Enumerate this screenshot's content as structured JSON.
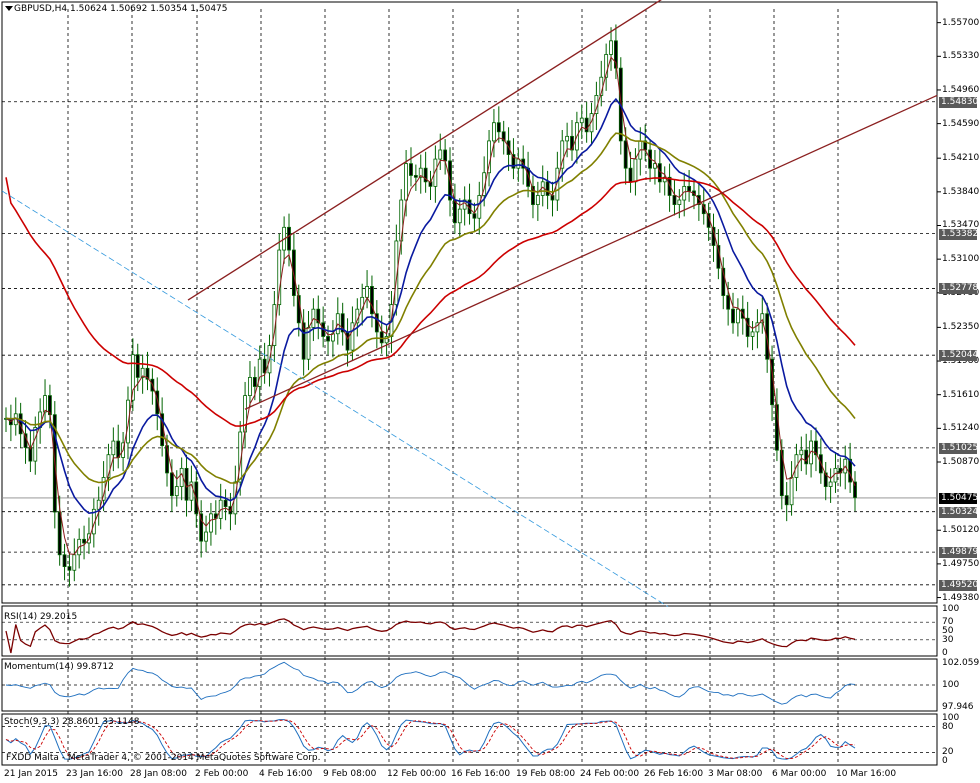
{
  "header": {
    "symbol": "GBPUSD,H4",
    "ohlc": "1.50624 1.50692 1.50354 1.50475"
  },
  "price_axis": [
    "1.55700",
    "1.55330",
    "1.54960",
    "1.54590",
    "1.54210",
    "1.53840",
    "1.53470",
    "1.53100",
    "1.52730",
    "1.52350",
    "1.51980",
    "1.51610",
    "1.51240",
    "1.50870",
    "1.50120",
    "1.49750",
    "1.49380"
  ],
  "hline_tags": [
    {
      "label": "1.54830",
      "dark": false
    },
    {
      "label": "1.53382",
      "dark": false
    },
    {
      "label": "1.52778",
      "dark": false
    },
    {
      "label": "1.52044",
      "dark": false
    },
    {
      "label": "1.51025",
      "dark": false
    },
    {
      "label": "1.50475",
      "dark": true
    },
    {
      "label": "1.50324",
      "dark": false
    },
    {
      "label": "1.49879",
      "dark": false
    },
    {
      "label": "1.49520",
      "dark": false
    }
  ],
  "dates": [
    "21 Jan 2015",
    "23 Jan 16:00",
    "28 Jan 08:00",
    "2 Feb 00:00",
    "4 Feb 16:00",
    "9 Feb 08:00",
    "12 Feb 00:00",
    "16 Feb 16:00",
    "19 Feb 08:00",
    "24 Feb 00:00",
    "26 Feb 16:00",
    "3 Mar 08:00",
    "6 Mar 00:00",
    "10 Mar 16:00"
  ],
  "rsi": {
    "title": "RSI(14) 29.2015",
    "levels": [
      "100",
      "70",
      "50",
      "30",
      "0"
    ]
  },
  "momentum": {
    "title": "Momentum(14) 99.8712",
    "levels": [
      "102.0595",
      "100",
      "97.946"
    ]
  },
  "stoch": {
    "title": "Stoch(9,3,3) 28.8601 33.1148",
    "levels": [
      "100",
      "80",
      "20",
      "0"
    ]
  },
  "copyright": "FXDD Malta - MetaTrader 4, © 2001-2014 MetaQuotes Software Corp.",
  "colors": {
    "candle": "#006400",
    "ma_fast": "#8b1a1a",
    "ma_blue": "#0a1aa0",
    "ma_olive": "#808000",
    "ma_red": "#cc0000",
    "trendline": "#8b2020",
    "rsi": "#7a0000",
    "momentum": "#1f6fbf",
    "stoch_main": "#1f6fbf",
    "stoch_signal": "#cc0000"
  },
  "chart_data": {
    "type": "candlestick",
    "title": "GBPUSD,H4",
    "ylim": [
      1.4938,
      1.5585
    ],
    "closes": [
      1.5135,
      1.5128,
      1.514,
      1.5118,
      1.5103,
      1.5088,
      1.5125,
      1.5142,
      1.516,
      1.5139,
      1.5032,
      1.4985,
      1.4972,
      1.4968,
      1.4985,
      1.5002,
      1.4998,
      1.5008,
      1.5035,
      1.5045,
      1.507,
      1.5095,
      1.511,
      1.5092,
      1.5108,
      1.5155,
      1.5205,
      1.518,
      1.519,
      1.5178,
      1.5165,
      1.514,
      1.5105,
      1.5075,
      1.505,
      1.506,
      1.508,
      1.5045,
      1.5065,
      1.503,
      1.5,
      1.501,
      1.503,
      1.5025,
      1.5045,
      1.5038,
      1.503,
      1.5065,
      1.512,
      1.516,
      1.518,
      1.517,
      1.52,
      1.5185,
      1.5215,
      1.526,
      1.532,
      1.5345,
      1.532,
      1.527,
      1.524,
      1.52,
      1.5235,
      1.5255,
      1.524,
      1.5225,
      1.522,
      1.5228,
      1.525,
      1.523,
      1.521,
      1.524,
      1.5255,
      1.5268,
      1.528,
      1.525,
      1.523,
      1.5218,
      1.5225,
      1.526,
      1.533,
      1.5375,
      1.5415,
      1.5402,
      1.54,
      1.541,
      1.5395,
      1.539,
      1.542,
      1.543,
      1.5418,
      1.5375,
      1.535,
      1.5365,
      1.5375,
      1.536,
      1.5355,
      1.538,
      1.5405,
      1.544,
      1.546,
      1.545,
      1.544,
      1.5425,
      1.541,
      1.542,
      1.541,
      1.539,
      1.537,
      1.538,
      1.5395,
      1.538,
      1.5375,
      1.541,
      1.544,
      1.5445,
      1.543,
      1.546,
      1.5465,
      1.545,
      1.547,
      1.549,
      1.551,
      1.5535,
      1.555,
      1.552,
      1.544,
      1.541,
      1.5395,
      1.542,
      1.544,
      1.543,
      1.541,
      1.5415,
      1.5395,
      1.54,
      1.538,
      1.537,
      1.5375,
      1.539,
      1.5385,
      1.538,
      1.537,
      1.536,
      1.5345,
      1.5325,
      1.53,
      1.527,
      1.5255,
      1.524,
      1.5255,
      1.5245,
      1.5225,
      1.523,
      1.524,
      1.525,
      1.52,
      1.515,
      1.51,
      1.505,
      1.504,
      1.507,
      1.5095,
      1.51,
      1.5085,
      1.511,
      1.5095,
      1.5075,
      1.506,
      1.5065,
      1.508,
      1.5075,
      1.509,
      1.5065,
      1.5048
    ]
  }
}
